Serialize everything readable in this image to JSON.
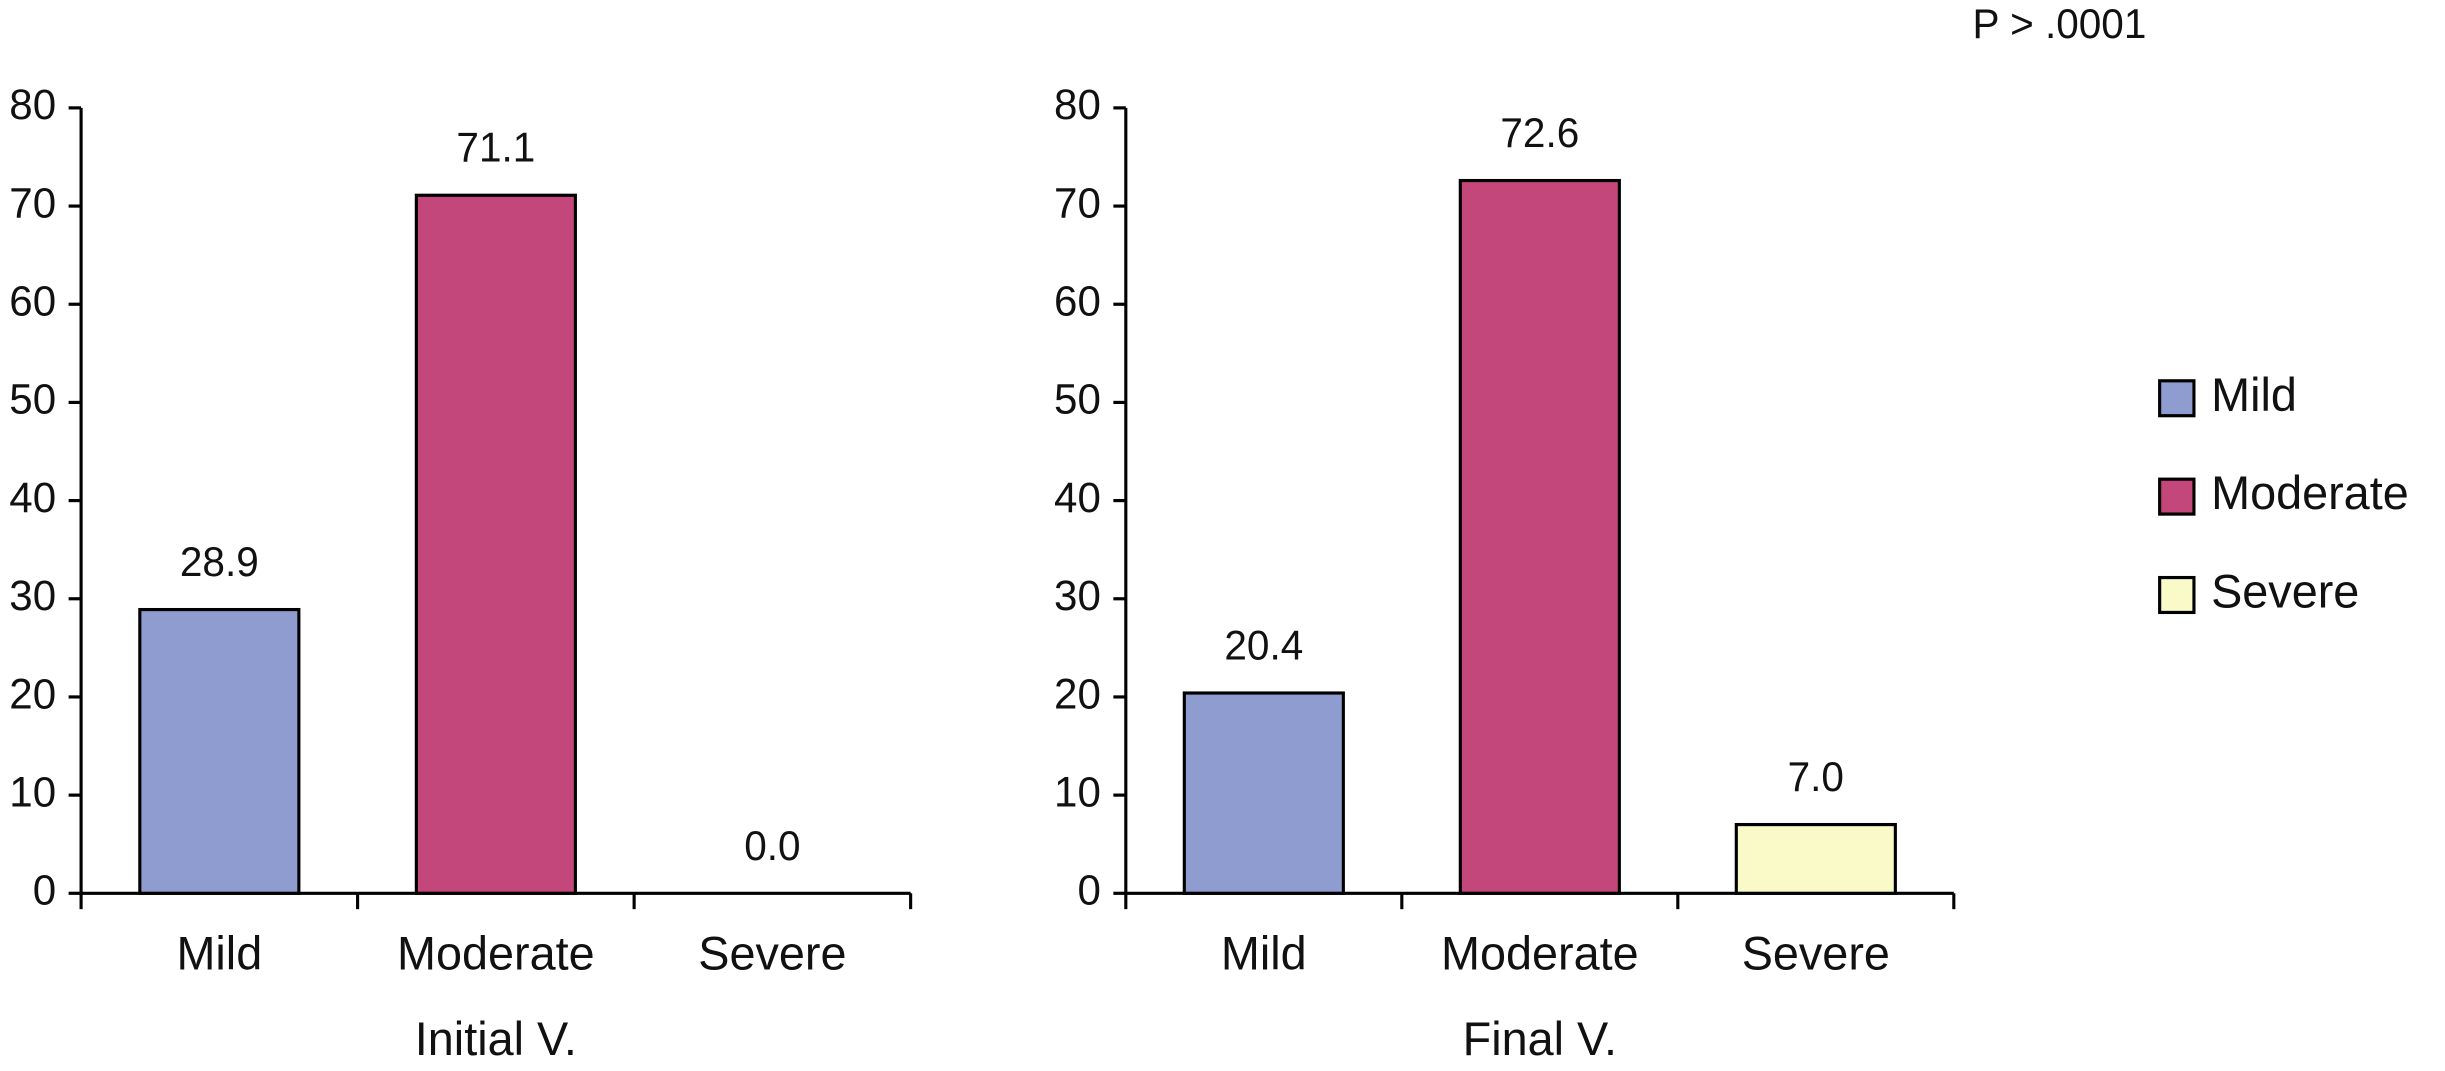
{
  "chart_data": [
    {
      "type": "bar",
      "categories": [
        "Mild",
        "Moderate",
        "Severe"
      ],
      "values": [
        28.9,
        71.1,
        0
      ],
      "value_labels": [
        "28.9",
        "71.1",
        "0.0"
      ],
      "colors": [
        "#8f9ccf",
        "#c4477b",
        "#fafac8"
      ],
      "xlabel": "Initial V.",
      "ylim": [
        0,
        80
      ],
      "yticks": [
        0,
        10,
        20,
        30,
        40,
        50,
        60,
        70,
        80
      ]
    },
    {
      "type": "bar",
      "categories": [
        "Mild",
        "Moderate",
        "Severe"
      ],
      "values": [
        20.4,
        72.6,
        7
      ],
      "value_labels": [
        "20.4",
        "72.6",
        "7.0"
      ],
      "colors": [
        "#8f9ccf",
        "#c4477b",
        "#fafac8"
      ],
      "xlabel": "Final V.",
      "ylim": [
        0,
        80
      ],
      "yticks": [
        0,
        10,
        20,
        30,
        40,
        50,
        60,
        70,
        80
      ],
      "annotation": "P > .0001",
      "legend": {
        "position": "right",
        "items": [
          "Mild",
          "Moderate",
          "Severe"
        ]
      }
    }
  ]
}
